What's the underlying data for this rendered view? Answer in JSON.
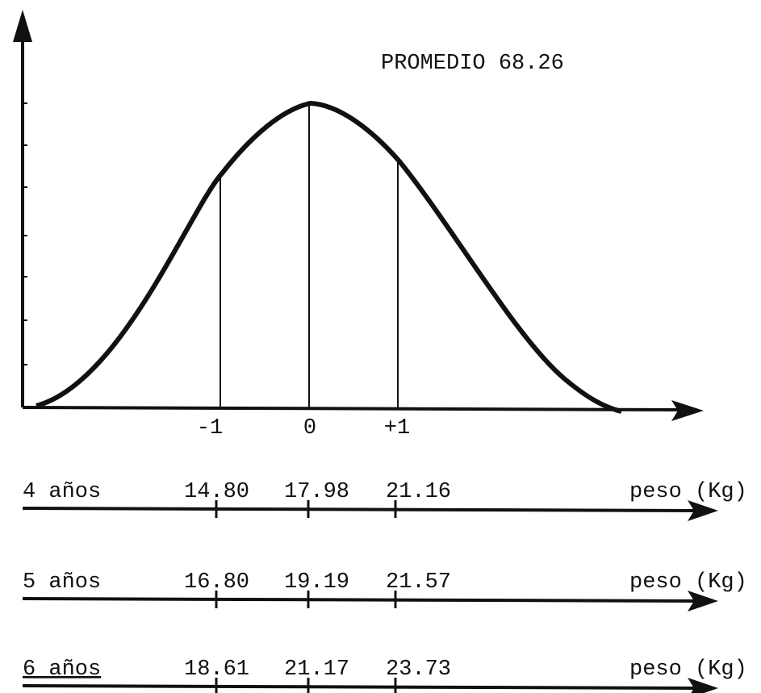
{
  "title": "PROMEDIO 68.26",
  "axis_labels": [
    "-1",
    "0",
    "+1"
  ],
  "scales": [
    {
      "label": "4 años",
      "values": [
        "14.80",
        "17.98",
        "21.16"
      ],
      "unit": "peso (Kg)"
    },
    {
      "label": "5 años",
      "values": [
        "16.80",
        "19.19",
        "21.57"
      ],
      "unit": "peso (Kg)"
    },
    {
      "label": "6 años",
      "values": [
        "18.61",
        "21.17",
        "23.73"
      ],
      "unit": "peso (Kg)"
    }
  ]
}
